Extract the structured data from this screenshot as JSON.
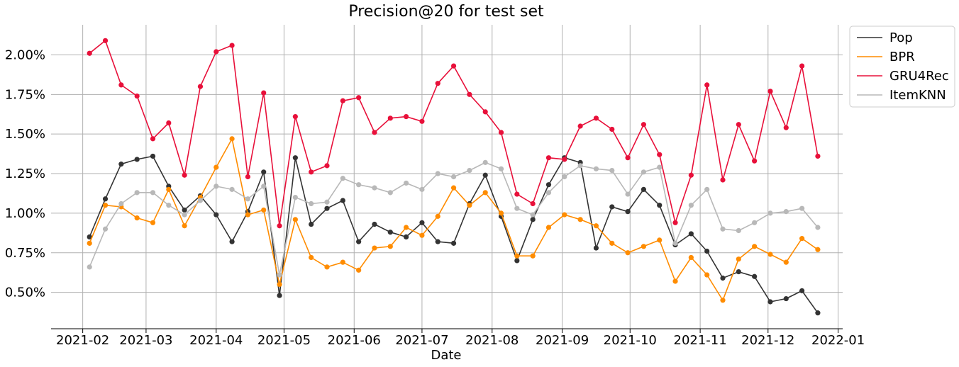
{
  "chart_data": {
    "type": "line",
    "title": "Precision@20 for test set",
    "xlabel": "Date",
    "ylabel": "",
    "ylim": [
      0.0027,
      0.0219
    ],
    "xlim": [
      "2021-01-18",
      "2022-01-03"
    ],
    "grid": true,
    "legend_position": "top-right",
    "x_ticks": [
      "2021-02-01",
      "2021-03-01",
      "2021-04-01",
      "2021-05-01",
      "2021-06-01",
      "2021-07-01",
      "2021-08-01",
      "2021-09-01",
      "2021-10-01",
      "2021-11-01",
      "2021-12-01",
      "2022-01-01"
    ],
    "x_tick_labels": [
      "2021-02",
      "2021-03",
      "2021-04",
      "2021-05",
      "2021-06",
      "2021-07",
      "2021-08",
      "2021-09",
      "2021-10",
      "2021-11",
      "2021-12",
      "2022-01"
    ],
    "y_ticks": [
      0.005,
      0.0075,
      0.01,
      0.0125,
      0.015,
      0.0175,
      0.02
    ],
    "y_tick_labels": [
      "0.50%",
      "0.75%",
      "1.00%",
      "1.25%",
      "1.50%",
      "1.75%",
      "2.00%"
    ],
    "x": [
      "2021-02-04",
      "2021-02-11",
      "2021-02-18",
      "2021-02-25",
      "2021-03-04",
      "2021-03-11",
      "2021-03-18",
      "2021-03-25",
      "2021-04-01",
      "2021-04-08",
      "2021-04-15",
      "2021-04-22",
      "2021-04-29",
      "2021-05-06",
      "2021-05-13",
      "2021-05-20",
      "2021-05-27",
      "2021-06-03",
      "2021-06-10",
      "2021-06-17",
      "2021-06-24",
      "2021-07-01",
      "2021-07-08",
      "2021-07-15",
      "2021-07-22",
      "2021-07-29",
      "2021-08-05",
      "2021-08-12",
      "2021-08-19",
      "2021-08-26",
      "2021-09-02",
      "2021-09-09",
      "2021-09-16",
      "2021-09-23",
      "2021-09-30",
      "2021-10-07",
      "2021-10-14",
      "2021-10-21",
      "2021-10-28",
      "2021-11-04",
      "2021-11-11",
      "2021-11-18",
      "2021-11-25",
      "2021-12-02",
      "2021-12-09",
      "2021-12-16",
      "2021-12-23"
    ],
    "series": [
      {
        "name": "Pop",
        "color": "#333333",
        "values": [
          0.0085,
          0.0109,
          0.0131,
          0.0134,
          0.0136,
          0.0117,
          0.0102,
          0.0111,
          0.0099,
          0.0082,
          0.0101,
          0.0126,
          0.0048,
          0.0135,
          0.0093,
          0.0103,
          0.0108,
          0.0082,
          0.0093,
          0.0088,
          0.0085,
          0.0094,
          0.0082,
          0.0081,
          0.0106,
          0.0124,
          0.0098,
          0.007,
          0.0096,
          0.0118,
          0.0135,
          0.0132,
          0.0078,
          0.0104,
          0.0101,
          0.0115,
          0.0105,
          0.008,
          0.0087,
          0.0076,
          0.0059,
          0.0063,
          0.006,
          0.0044,
          0.0046,
          0.0051,
          0.0037
        ]
      },
      {
        "name": "BPR",
        "color": "#ff8c00",
        "values": [
          0.0081,
          0.0105,
          0.0104,
          0.0097,
          0.0094,
          0.0115,
          0.0092,
          0.011,
          0.0129,
          0.0147,
          0.0099,
          0.0102,
          0.0055,
          0.0096,
          0.0072,
          0.0066,
          0.0069,
          0.0064,
          0.0078,
          0.0079,
          0.0091,
          0.0086,
          0.0098,
          0.0116,
          0.0105,
          0.0113,
          0.01,
          0.0073,
          0.0073,
          0.0091,
          0.0099,
          0.0096,
          0.0092,
          0.0081,
          0.0075,
          0.0079,
          0.0083,
          0.0057,
          0.0072,
          0.0061,
          0.0045,
          0.0071,
          0.0079,
          0.0074,
          0.0069,
          0.0084,
          0.0077
        ]
      },
      {
        "name": "GRU4Rec",
        "color": "#e8103a",
        "values": [
          0.0201,
          0.0209,
          0.0181,
          0.0174,
          0.0147,
          0.0157,
          0.0124,
          0.018,
          0.0202,
          0.0206,
          0.0123,
          0.0176,
          0.0092,
          0.0161,
          0.0126,
          0.013,
          0.0171,
          0.0173,
          0.0151,
          0.016,
          0.0161,
          0.0158,
          0.0182,
          0.0193,
          0.0175,
          0.0164,
          0.0151,
          0.0112,
          0.0106,
          0.0135,
          0.0134,
          0.0155,
          0.016,
          0.0153,
          0.0135,
          0.0156,
          0.0137,
          0.0094,
          0.0124,
          0.0181,
          0.0121,
          0.0156,
          0.0133,
          0.0177,
          0.0154,
          0.0193,
          0.0136
        ]
      },
      {
        "name": "ItemKNN",
        "color": "#b8b8b8",
        "values": [
          0.0066,
          0.009,
          0.0106,
          0.0113,
          0.0113,
          0.0105,
          0.0099,
          0.0108,
          0.0117,
          0.0115,
          0.0109,
          0.0117,
          0.0061,
          0.011,
          0.0106,
          0.0107,
          0.0122,
          0.0118,
          0.0116,
          0.0113,
          0.0119,
          0.0115,
          0.0125,
          0.0123,
          0.0127,
          0.0132,
          0.0128,
          0.0103,
          0.0099,
          0.0113,
          0.0123,
          0.013,
          0.0128,
          0.0127,
          0.0112,
          0.0126,
          0.0129,
          0.0081,
          0.0105,
          0.0115,
          0.009,
          0.0089,
          0.0094,
          0.01,
          0.0101,
          0.0103,
          0.0091
        ]
      }
    ]
  }
}
